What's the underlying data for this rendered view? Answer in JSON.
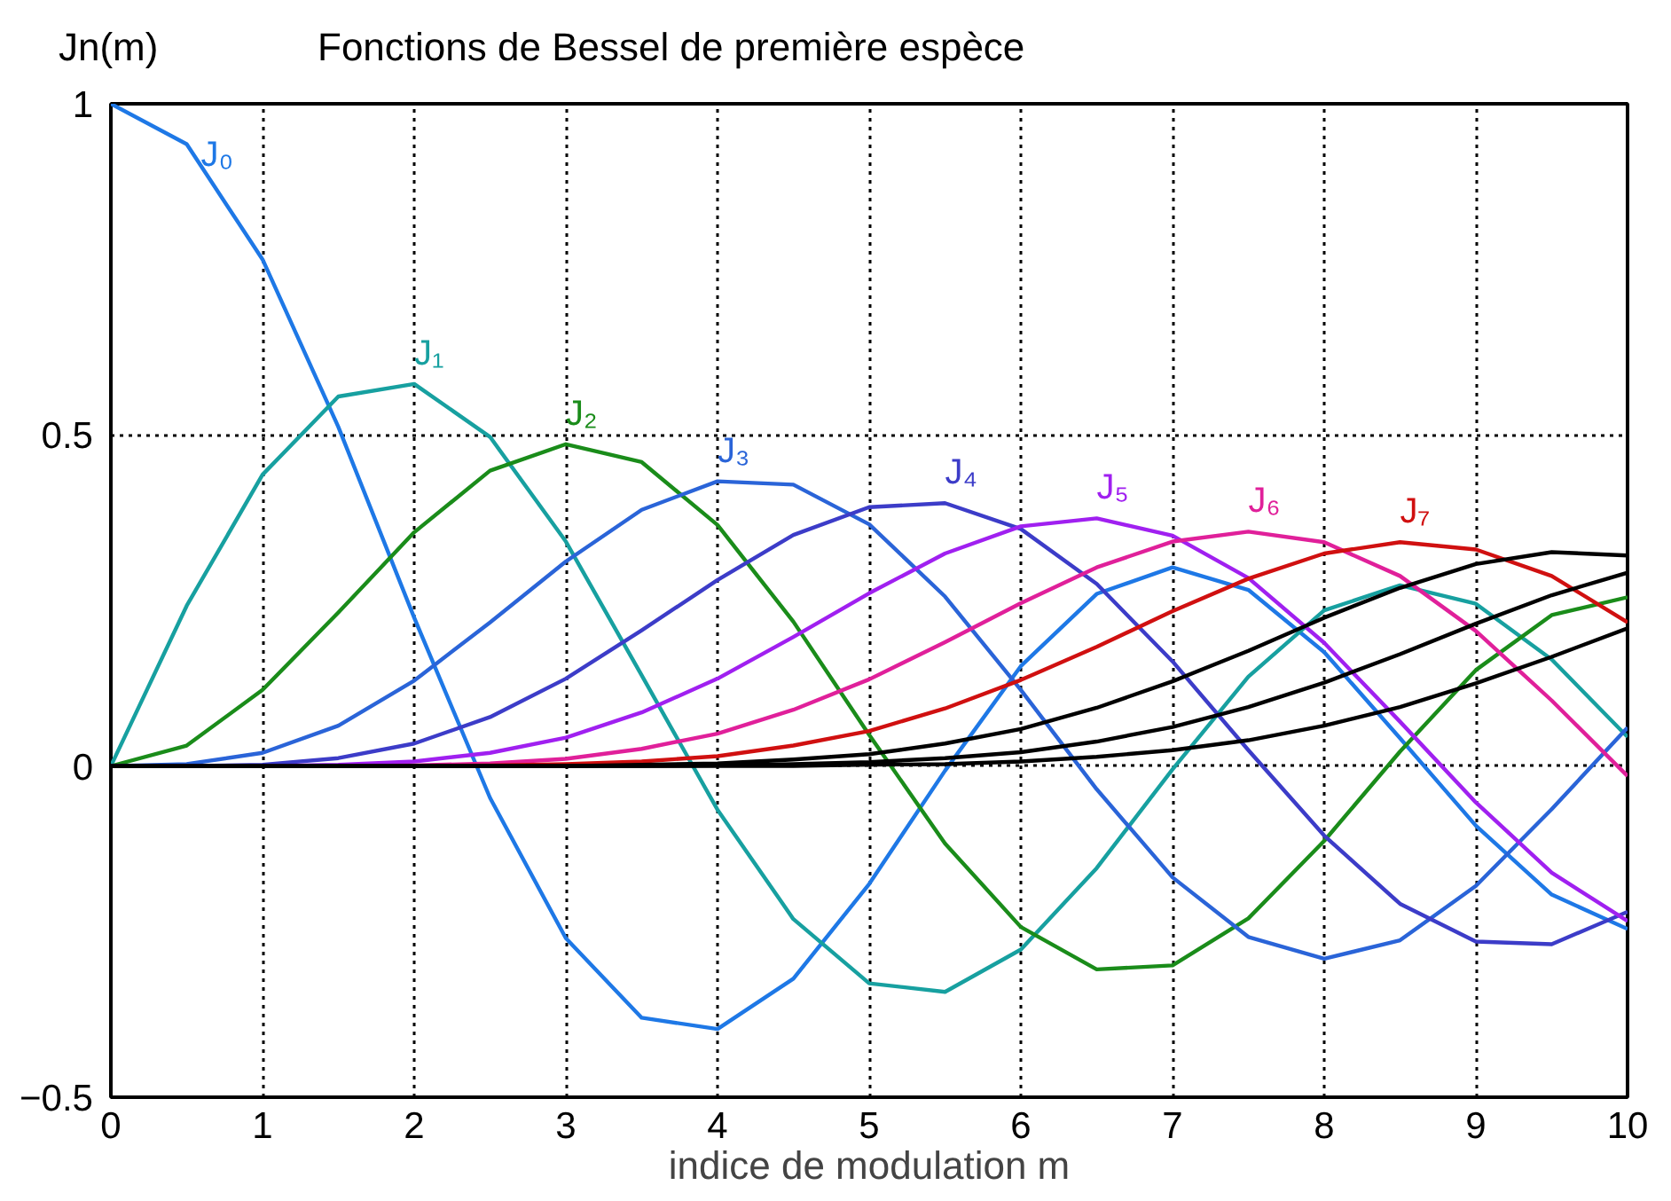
{
  "chart_data": {
    "type": "line",
    "title": "Fonctions de Bessel de première espèce",
    "xlabel": "indice de modulation m",
    "ylabel": "Jn(m)",
    "x": [
      0,
      0.5,
      1,
      1.5,
      2,
      2.5,
      3,
      3.5,
      4,
      4.5,
      5,
      5.5,
      6,
      6.5,
      7,
      7.5,
      8,
      8.5,
      9,
      9.5,
      10
    ],
    "xlim": [
      0,
      10
    ],
    "ylim": [
      -0.5,
      1
    ],
    "xticks": [
      0,
      1,
      2,
      3,
      4,
      5,
      6,
      7,
      8,
      9,
      10
    ],
    "yticks": [
      -0.5,
      0,
      0.5,
      1
    ],
    "grid": true,
    "marker": "none",
    "line_style": "solid",
    "series": [
      {
        "name": "J₀",
        "color": "#1e78e6",
        "values": [
          1,
          0.939,
          0.765,
          0.512,
          0.224,
          -0.048,
          -0.26,
          -0.38,
          -0.397,
          -0.321,
          -0.178,
          -0.007,
          0.151,
          0.26,
          0.3,
          0.266,
          0.172,
          0.042,
          -0.09,
          -0.194,
          -0.246
        ]
      },
      {
        "name": "J₁",
        "color": "#17a0a0",
        "values": [
          0,
          0.242,
          0.44,
          0.558,
          0.577,
          0.497,
          0.339,
          0.137,
          -0.066,
          -0.231,
          -0.328,
          -0.341,
          -0.277,
          -0.154,
          -0.005,
          0.135,
          0.235,
          0.273,
          0.245,
          0.161,
          0.044
        ]
      },
      {
        "name": "J₂",
        "color": "#1a8c1a",
        "values": [
          0,
          0.031,
          0.115,
          0.232,
          0.353,
          0.446,
          0.486,
          0.459,
          0.364,
          0.218,
          0.047,
          -0.117,
          -0.243,
          -0.307,
          -0.301,
          -0.23,
          -0.113,
          0.022,
          0.145,
          0.228,
          0.255
        ]
      },
      {
        "name": "J₃",
        "color": "#2a64d8",
        "values": [
          0,
          0.003,
          0.02,
          0.061,
          0.129,
          0.217,
          0.309,
          0.387,
          0.43,
          0.425,
          0.365,
          0.256,
          0.115,
          -0.035,
          -0.168,
          -0.258,
          -0.291,
          -0.263,
          -0.181,
          -0.065,
          0.058
        ]
      },
      {
        "name": "J₄",
        "color": "#3c3cc8",
        "values": [
          0,
          0,
          0.002,
          0.012,
          0.034,
          0.074,
          0.132,
          0.205,
          0.281,
          0.349,
          0.391,
          0.397,
          0.358,
          0.275,
          0.158,
          0.024,
          -0.105,
          -0.208,
          -0.265,
          -0.269,
          -0.22
        ]
      },
      {
        "name": "J₅",
        "color": "#a020f0",
        "values": [
          0,
          0,
          0,
          0.002,
          0.007,
          0.02,
          0.043,
          0.081,
          0.132,
          0.195,
          0.261,
          0.321,
          0.362,
          0.374,
          0.348,
          0.284,
          0.186,
          0.067,
          -0.055,
          -0.161,
          -0.234
        ]
      },
      {
        "name": "J₆",
        "color": "#e0209a",
        "values": [
          null,
          null,
          null,
          0,
          0.001,
          0.004,
          0.011,
          0.026,
          0.049,
          0.085,
          0.131,
          0.187,
          0.246,
          0.3,
          0.339,
          0.354,
          0.338,
          0.287,
          0.204,
          0.099,
          -0.015
        ]
      },
      {
        "name": "J₇",
        "color": "#d01010",
        "values": [
          null,
          null,
          null,
          null,
          0,
          0.001,
          0.003,
          0.007,
          0.015,
          0.031,
          0.053,
          0.087,
          0.13,
          0.18,
          0.234,
          0.283,
          0.321,
          0.338,
          0.327,
          0.287,
          0.217
        ]
      },
      {
        "color": "#000000",
        "values": [
          0,
          0,
          0,
          0,
          0,
          0,
          0,
          0.002,
          0.004,
          0.01,
          0.018,
          0.034,
          0.056,
          0.088,
          0.128,
          0.174,
          0.224,
          0.269,
          0.305,
          0.323,
          0.318
        ]
      },
      {
        "color": "#000000",
        "values": [
          0,
          0,
          0,
          0,
          0,
          0,
          0,
          0,
          0.001,
          0.003,
          0.006,
          0.012,
          0.021,
          0.037,
          0.059,
          0.089,
          0.126,
          0.169,
          0.215,
          0.258,
          0.292
        ]
      },
      {
        "color": "#000000",
        "values": [
          0,
          0,
          0,
          0,
          0,
          0,
          0,
          0,
          0,
          0,
          0.002,
          0.003,
          0.007,
          0.014,
          0.024,
          0.039,
          0.061,
          0.089,
          0.125,
          0.165,
          0.208
        ]
      }
    ]
  }
}
